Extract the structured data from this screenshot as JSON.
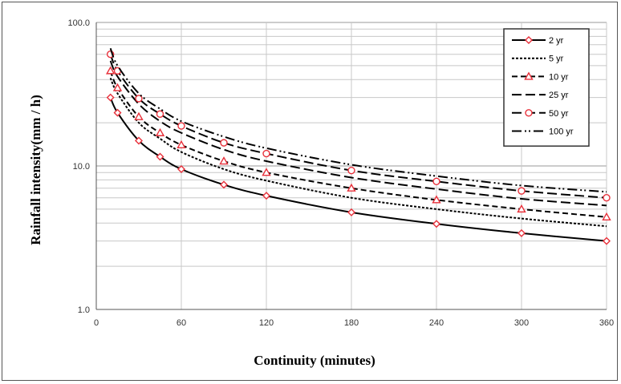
{
  "chart_data": {
    "type": "line",
    "title": "",
    "xlabel": "Continuity (minutes)",
    "ylabel": "Rainfall intensity(mm / h)",
    "xlim": [
      0,
      360
    ],
    "ylim": [
      1,
      100
    ],
    "yscale": "log",
    "x_ticks": [
      0,
      60,
      120,
      180,
      240,
      300,
      360
    ],
    "y_ticks": [
      1.0,
      10.0,
      100.0
    ],
    "y_tick_labels": [
      "1.0",
      "10.0",
      "100.0"
    ],
    "grid": true,
    "legend_position": "top-right",
    "series": [
      {
        "name": "2 yr",
        "color": "#000000",
        "dash": "solid",
        "marker": "diamond",
        "x": [
          10,
          15,
          30,
          45,
          60,
          90,
          120,
          180,
          240,
          300,
          360
        ],
        "y": [
          30,
          23.5,
          15,
          11.6,
          9.5,
          7.4,
          6.2,
          4.75,
          3.95,
          3.4,
          3.0
        ]
      },
      {
        "name": "5 yr",
        "color": "#000000",
        "dash": "dotted",
        "marker": "none",
        "x": [
          10,
          15,
          30,
          45,
          60,
          90,
          120,
          180,
          240,
          300,
          360
        ],
        "y": [
          41,
          32,
          20,
          15.5,
          12.5,
          9.5,
          7.9,
          6.0,
          5.0,
          4.3,
          3.8
        ]
      },
      {
        "name": "10 yr",
        "color": "#000000",
        "dash": "dash-short",
        "marker": "triangle",
        "x": [
          10,
          15,
          30,
          45,
          60,
          90,
          120,
          180,
          240,
          300,
          360
        ],
        "y": [
          46,
          35,
          22,
          17,
          14,
          10.8,
          9.0,
          7.0,
          5.8,
          5.0,
          4.4
        ]
      },
      {
        "name": "25 yr",
        "color": "#000000",
        "dash": "dash-long",
        "marker": "none",
        "x": [
          10,
          15,
          30,
          45,
          60,
          90,
          120,
          180,
          240,
          300,
          360
        ],
        "y": [
          54,
          42,
          27,
          20.5,
          17,
          13,
          10.8,
          8.3,
          6.9,
          5.9,
          5.3
        ]
      },
      {
        "name": "50 yr",
        "color": "#000000",
        "dash": "dash-long",
        "marker": "circle",
        "x": [
          10,
          15,
          30,
          45,
          60,
          90,
          120,
          180,
          240,
          300,
          360
        ],
        "y": [
          60,
          46,
          29.5,
          23,
          19,
          14.5,
          12.2,
          9.3,
          7.8,
          6.7,
          6.0
        ]
      },
      {
        "name": "100 yr",
        "color": "#000000",
        "dash": "dash-dot-dot",
        "marker": "none",
        "x": [
          10,
          15,
          30,
          45,
          60,
          90,
          120,
          180,
          240,
          300,
          360
        ],
        "y": [
          66,
          50,
          32,
          25,
          20.5,
          16,
          13.3,
          10.2,
          8.5,
          7.3,
          6.6
        ]
      }
    ]
  },
  "colors": {
    "marker_edge": "#e8303a",
    "grid": "#c8c8c8",
    "line": "#000000"
  }
}
